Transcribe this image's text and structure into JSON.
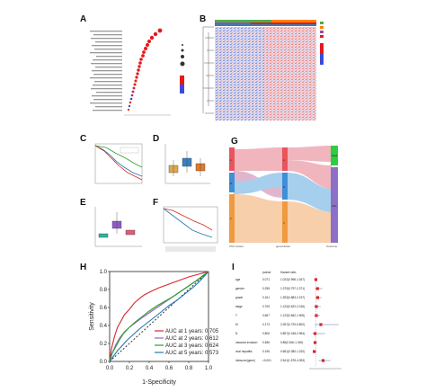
{
  "panels": {
    "A": "A",
    "B": "B",
    "C": "C",
    "D": "D",
    "E": "E",
    "F": "F",
    "G": "G",
    "H": "H",
    "I": "I"
  },
  "panel_g": {
    "axis_labels": [
      "CNV cluster",
      "geneCluster",
      "Outcome"
    ],
    "left_nodes": [
      "A",
      "B",
      "C"
    ],
    "mid_nodes": [
      "A",
      "B",
      "C"
    ],
    "right_nodes": [
      "Dead",
      "Alive"
    ]
  },
  "chart_data": [
    {
      "panel": "H",
      "type": "line",
      "xlabel": "1-Specificity",
      "ylabel": "Sensitivity",
      "xlim": [
        0.0,
        1.0
      ],
      "ylim": [
        0.0,
        1.0
      ],
      "x_ticks": [
        "0.0",
        "0.2",
        "0.4",
        "0.6",
        "0.8",
        "1.0"
      ],
      "y_ticks": [
        "0.0",
        "0.2",
        "0.4",
        "0.6",
        "0.8",
        "1.0"
      ],
      "legend_position": "bottom-right",
      "diagonal": true,
      "series": [
        {
          "name": "AUC at 1 years: 0.705",
          "color": "#d62728",
          "x": [
            0,
            0.02,
            0.05,
            0.08,
            0.12,
            0.15,
            0.2,
            0.25,
            0.3,
            0.35,
            0.42,
            0.5,
            0.6,
            0.7,
            0.8,
            0.9,
            1.0
          ],
          "y": [
            0,
            0.15,
            0.28,
            0.38,
            0.46,
            0.52,
            0.58,
            0.65,
            0.7,
            0.74,
            0.78,
            0.82,
            0.86,
            0.9,
            0.94,
            0.97,
            1.0
          ]
        },
        {
          "name": "AUC at 2 years: 0.612",
          "color": "#9467bd",
          "x": [
            0,
            0.03,
            0.06,
            0.1,
            0.15,
            0.2,
            0.26,
            0.32,
            0.4,
            0.48,
            0.56,
            0.64,
            0.72,
            0.8,
            0.88,
            0.94,
            1.0
          ],
          "y": [
            0,
            0.1,
            0.18,
            0.26,
            0.33,
            0.38,
            0.43,
            0.48,
            0.54,
            0.6,
            0.66,
            0.72,
            0.78,
            0.84,
            0.9,
            0.95,
            1.0
          ]
        },
        {
          "name": "AUC at 3 years: 0.624",
          "color": "#2ca02c",
          "x": [
            0,
            0.02,
            0.06,
            0.1,
            0.14,
            0.2,
            0.26,
            0.33,
            0.4,
            0.48,
            0.56,
            0.64,
            0.72,
            0.8,
            0.88,
            0.94,
            1.0
          ],
          "y": [
            0,
            0.08,
            0.16,
            0.24,
            0.31,
            0.38,
            0.44,
            0.5,
            0.56,
            0.62,
            0.67,
            0.72,
            0.78,
            0.84,
            0.9,
            0.95,
            1.0
          ]
        },
        {
          "name": "AUC at 5 years: 0.573",
          "color": "#1f77b4",
          "x": [
            0,
            0.04,
            0.08,
            0.13,
            0.18,
            0.24,
            0.3,
            0.37,
            0.44,
            0.52,
            0.6,
            0.68,
            0.76,
            0.84,
            0.9,
            0.95,
            1.0
          ],
          "y": [
            0,
            0.06,
            0.12,
            0.18,
            0.24,
            0.3,
            0.36,
            0.42,
            0.48,
            0.55,
            0.62,
            0.68,
            0.75,
            0.82,
            0.88,
            0.94,
            1.0
          ]
        }
      ]
    },
    {
      "panel": "I",
      "type": "table",
      "headers": [
        "pvalue",
        "Hazard ratio"
      ],
      "rows": [
        {
          "name": "age",
          "pvalue": "0.071",
          "hr_text": "1.022(0.998-1.047)",
          "hr": 1.022,
          "lo": 0.998,
          "hi": 1.047
        },
        {
          "name": "gender",
          "pvalue": "0.255",
          "hr_text": "1.370(0.797-2.371)",
          "hr": 1.37,
          "lo": 0.797,
          "hi": 2.371
        },
        {
          "name": "grade",
          "pvalue": "0.161",
          "hr_text": "1.393(0.883-2.197)",
          "hr": 1.393,
          "lo": 0.883,
          "hi": 2.197
        },
        {
          "name": "stage",
          "pvalue": "0.705",
          "hr_text": "1.120(0.622-2.016)",
          "hr": 1.12,
          "lo": 0.622,
          "hi": 2.016
        },
        {
          "name": "T",
          "pvalue": "0.667",
          "hr_text": "1.123(0.662-1.905)",
          "hr": 1.123,
          "lo": 0.662,
          "hi": 1.905
        },
        {
          "name": "M",
          "pvalue": "0.173",
          "hr_text": "2.057(0.729-5.802)",
          "hr": 2.057,
          "lo": 0.729,
          "hi": 5.802
        },
        {
          "name": "N",
          "pvalue": "0.806",
          "hr_text": "0.857(0.248-2.964)",
          "hr": 0.857,
          "lo": 0.248,
          "hi": 2.964
        },
        {
          "name": "vascular invasion",
          "pvalue": "0.486",
          "hr_text": "0.85(0.540-1.340)",
          "hr": 0.85,
          "lo": 0.54,
          "hi": 1.34
        },
        {
          "name": "viral hepatitis",
          "pvalue": "0.196",
          "hr_text": "0.681(0.380-1.220)",
          "hr": 0.681,
          "lo": 0.38,
          "hi": 1.22
        },
        {
          "name": "riskscore(gene)",
          "pvalue": "<0.001",
          "hr_text": "2.541(1.578-4.093)",
          "hr": 2.541,
          "lo": 1.578,
          "hi": 4.093
        }
      ]
    }
  ]
}
